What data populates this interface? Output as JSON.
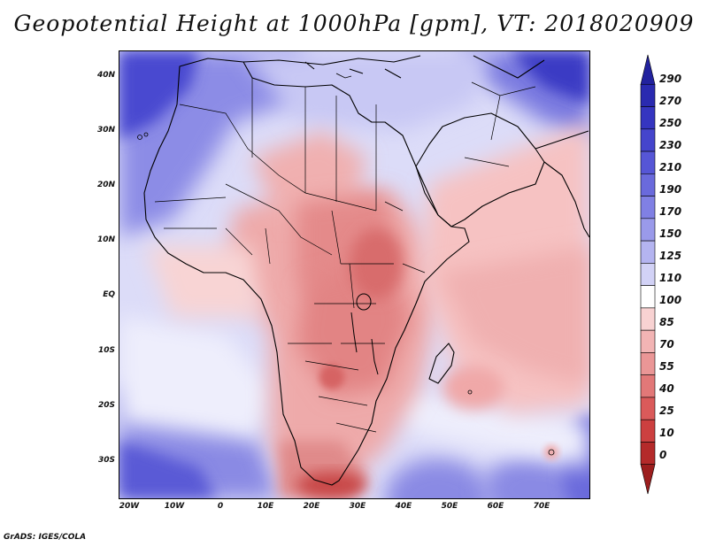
{
  "title": "Geopotential Height at 1000hPa [gpm], VT: 2018020909",
  "credit": "GrADS: IGES/COLA",
  "map": {
    "region": "Africa, Middle East and western Indian Ocean",
    "lon_range": [
      -22,
      80
    ],
    "lat_range": [
      -37,
      45
    ],
    "lat_labels": [
      "40N",
      "30N",
      "20N",
      "10N",
      "EQ",
      "10S",
      "20S",
      "30S"
    ],
    "lat_values": [
      40,
      30,
      20,
      10,
      0,
      -10,
      -20,
      -30
    ],
    "lon_labels": [
      "20W",
      "10W",
      "0",
      "10E",
      "20E",
      "30E",
      "40E",
      "50E",
      "60E",
      "70E"
    ],
    "lon_values": [
      -20,
      -10,
      0,
      10,
      20,
      30,
      40,
      50,
      60,
      70
    ]
  },
  "colorbar": {
    "labels": [
      "290",
      "270",
      "250",
      "230",
      "210",
      "190",
      "170",
      "150",
      "125",
      "110",
      "100",
      "85",
      "70",
      "55",
      "40",
      "25",
      "10",
      "0"
    ],
    "colors": [
      "#22229e",
      "#2a2ab0",
      "#3535c0",
      "#4545cc",
      "#5656d6",
      "#6a6adc",
      "#8080e4",
      "#9a9aea",
      "#b4b4f0",
      "#d2d2f6",
      "#ffffff",
      "#f8d2d2",
      "#f2b4b4",
      "#ea9696",
      "#e27878",
      "#da5a5a",
      "#cc4040",
      "#b42a2a",
      "#9c1e1e"
    ]
  },
  "colors": {
    "ocean_base": "#d2d2f6",
    "land_base": "#eeaaaa",
    "coast": "#000000"
  }
}
